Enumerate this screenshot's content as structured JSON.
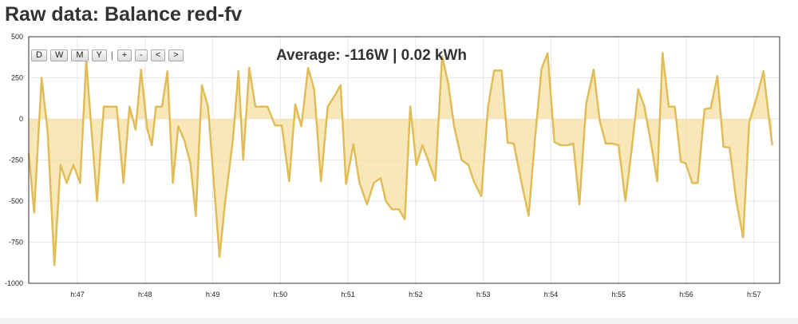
{
  "page": {
    "title": "Raw data: Balance red-fv"
  },
  "toolbar": {
    "buttons": [
      "D",
      "W",
      "M",
      "Y",
      "+",
      "-",
      "<",
      ">"
    ],
    "separator": "|"
  },
  "average_label": "Average: -116W | 0.02 kWh",
  "colors": {
    "fill": "#f5dfa0",
    "line": "#e0bd58",
    "grid": "#e6e6e6",
    "axis": "#333333"
  },
  "chart_data": {
    "type": "area",
    "title": "",
    "xlabel": "",
    "ylabel": "",
    "ylim": [
      -1000,
      500
    ],
    "yticks": [
      500,
      250,
      0,
      -250,
      -500,
      -750,
      -1000
    ],
    "xlim": [
      46.28,
      57.38
    ],
    "xticks": [
      {
        "value": 47,
        "label": "h:47"
      },
      {
        "value": 48,
        "label": "h:48"
      },
      {
        "value": 49,
        "label": "h:49"
      },
      {
        "value": 50,
        "label": "h:50"
      },
      {
        "value": 51,
        "label": "h:51"
      },
      {
        "value": 52,
        "label": "h:52"
      },
      {
        "value": 53,
        "label": "h:53"
      },
      {
        "value": 54,
        "label": "h:54"
      },
      {
        "value": 55,
        "label": "h:55"
      },
      {
        "value": 56,
        "label": "h:56"
      },
      {
        "value": 57,
        "label": "h:57"
      }
    ],
    "series": [
      {
        "points": [
          [
            46.28,
            -210
          ],
          [
            46.36,
            -570
          ],
          [
            46.47,
            250
          ],
          [
            46.56,
            -75
          ],
          [
            46.66,
            -890
          ],
          [
            46.75,
            -280
          ],
          [
            46.84,
            -390
          ],
          [
            46.94,
            -280
          ],
          [
            47.04,
            -390
          ],
          [
            47.13,
            360
          ],
          [
            47.2,
            -30
          ],
          [
            47.29,
            -500
          ],
          [
            47.39,
            75
          ],
          [
            47.47,
            75
          ],
          [
            47.58,
            75
          ],
          [
            47.68,
            -390
          ],
          [
            47.77,
            75
          ],
          [
            47.86,
            -65
          ],
          [
            47.94,
            300
          ],
          [
            48.03,
            -60
          ],
          [
            48.1,
            -160
          ],
          [
            48.16,
            75
          ],
          [
            48.25,
            75
          ],
          [
            48.33,
            290
          ],
          [
            48.41,
            -390
          ],
          [
            48.49,
            -45
          ],
          [
            48.58,
            -130
          ],
          [
            48.67,
            -270
          ],
          [
            48.75,
            -590
          ],
          [
            48.84,
            205
          ],
          [
            48.93,
            75
          ],
          [
            49.1,
            -840
          ],
          [
            49.18,
            -520
          ],
          [
            49.3,
            -120
          ],
          [
            49.38,
            290
          ],
          [
            49.45,
            -250
          ],
          [
            49.54,
            310
          ],
          [
            49.63,
            75
          ],
          [
            49.72,
            75
          ],
          [
            49.81,
            75
          ],
          [
            49.92,
            -40
          ],
          [
            50.02,
            -40
          ],
          [
            50.13,
            -380
          ],
          [
            50.22,
            90
          ],
          [
            50.31,
            -45
          ],
          [
            50.41,
            310
          ],
          [
            50.5,
            180
          ],
          [
            50.6,
            -380
          ],
          [
            50.7,
            75
          ],
          [
            50.8,
            140
          ],
          [
            50.89,
            205
          ],
          [
            50.97,
            -395
          ],
          [
            51.08,
            -155
          ],
          [
            51.17,
            -390
          ],
          [
            51.28,
            -520
          ],
          [
            51.38,
            -390
          ],
          [
            51.48,
            -360
          ],
          [
            51.56,
            -500
          ],
          [
            51.65,
            -550
          ],
          [
            51.75,
            -550
          ],
          [
            51.84,
            -610
          ],
          [
            51.92,
            75
          ],
          [
            52.01,
            -280
          ],
          [
            52.1,
            -160
          ],
          [
            52.2,
            -270
          ],
          [
            52.29,
            -375
          ],
          [
            52.39,
            380
          ],
          [
            52.48,
            220
          ],
          [
            52.57,
            -50
          ],
          [
            52.68,
            -250
          ],
          [
            52.78,
            -280
          ],
          [
            52.86,
            -380
          ],
          [
            52.97,
            -470
          ],
          [
            53.07,
            75
          ],
          [
            53.16,
            295
          ],
          [
            53.27,
            295
          ],
          [
            53.36,
            -145
          ],
          [
            53.45,
            -150
          ],
          [
            53.56,
            -380
          ],
          [
            53.67,
            -590
          ],
          [
            53.76,
            -140
          ],
          [
            53.86,
            305
          ],
          [
            53.95,
            400
          ],
          [
            54.05,
            -140
          ],
          [
            54.14,
            -160
          ],
          [
            54.24,
            -160
          ],
          [
            54.33,
            -150
          ],
          [
            54.42,
            -520
          ],
          [
            54.52,
            90
          ],
          [
            54.63,
            300
          ],
          [
            54.72,
            -10
          ],
          [
            54.81,
            -150
          ],
          [
            54.9,
            -150
          ],
          [
            55.0,
            -160
          ],
          [
            55.1,
            -500
          ],
          [
            55.2,
            -160
          ],
          [
            55.29,
            180
          ],
          [
            55.38,
            75
          ],
          [
            55.48,
            -150
          ],
          [
            55.57,
            -380
          ],
          [
            55.65,
            400
          ],
          [
            55.74,
            75
          ],
          [
            55.83,
            75
          ],
          [
            55.92,
            -260
          ],
          [
            55.99,
            -270
          ],
          [
            56.09,
            -390
          ],
          [
            56.17,
            -390
          ],
          [
            56.27,
            60
          ],
          [
            56.36,
            65
          ],
          [
            56.46,
            260
          ],
          [
            56.55,
            -170
          ],
          [
            56.64,
            -175
          ],
          [
            56.74,
            -500
          ],
          [
            56.84,
            -720
          ],
          [
            56.93,
            -20
          ],
          [
            57.04,
            130
          ],
          [
            57.14,
            290
          ],
          [
            57.27,
            -160
          ]
        ]
      }
    ]
  }
}
